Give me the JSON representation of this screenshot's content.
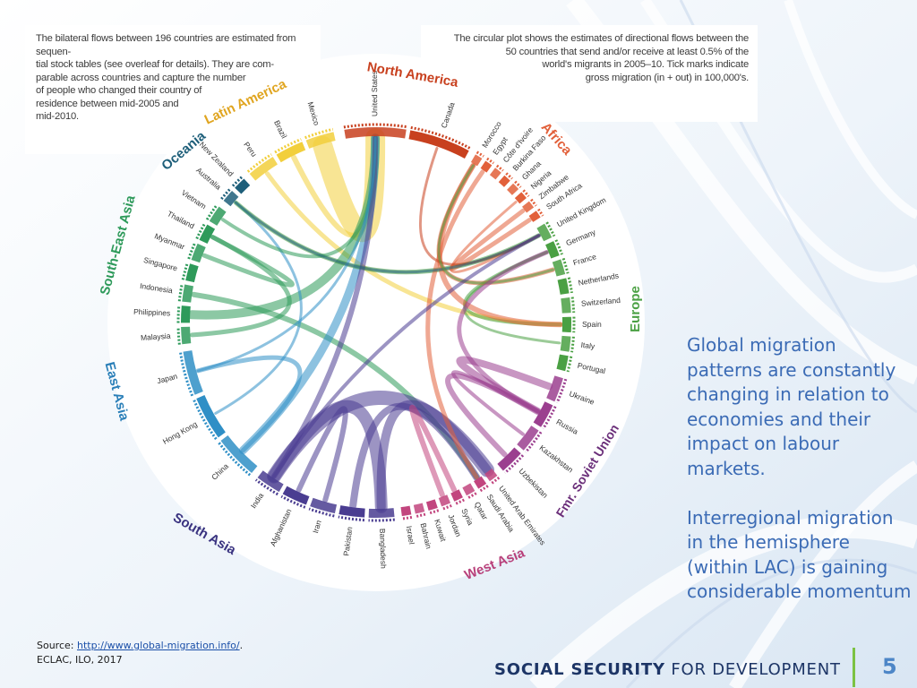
{
  "caption_left": "The bilateral flows between 196 countries are estimated from sequen-\ntial stock tables (see overleaf for details). They are com-\nparable across countries and capture the number\nof people who changed their country of\nresidence between mid-2005 and\nmid-2010.",
  "caption_right": "The circular plot shows the estimates of directional flows between the\n50 countries that send and/or receive at least 0.5% of the\nworld's migrants in 2005–10. Tick marks indicate\ngross migration (in + out) in 100,000's.",
  "regions": {
    "north_america": "North America",
    "africa": "Africa",
    "europe": "Europe",
    "fmr_soviet_union": "Fmr. Soviet Union",
    "west_asia": "West Asia",
    "south_asia": "South Asia",
    "east_asia": "East Asia",
    "south_east_asia": "South-East Asia",
    "oceania": "Oceania",
    "latin_america": "Latin America"
  },
  "countries": [
    "United States",
    "Canada",
    "Morocco",
    "Egypt",
    "Côte d'Ivoire",
    "Burkina Faso",
    "Ghana",
    "Nigeria",
    "Zimbabwe",
    "South Africa",
    "United Kingdom",
    "Germany",
    "France",
    "Netherlands",
    "Switzerland",
    "Spain",
    "Italy",
    "Portugal",
    "Ukraine",
    "Russia",
    "Kazakhstan",
    "Uzbekistan",
    "United Arab Emirates",
    "Saudi Arabia",
    "Qatar",
    "Syria",
    "Jordan",
    "Kuwait",
    "Bahrain",
    "Israel",
    "Bangladesh",
    "Pakistan",
    "Iran",
    "Afghanistan",
    "India",
    "China",
    "Hong Kong",
    "Japan",
    "Malaysia",
    "Philippines",
    "Indonesia",
    "Singapore",
    "Myanmar",
    "Thailand",
    "Vietnam",
    "Australia",
    "New Zealand",
    "Peru",
    "Brazil",
    "Mexico"
  ],
  "region_colors": {
    "north_america": "#c8401e",
    "africa": "#e2603a",
    "europe": "#4aa043",
    "fmr_soviet_union": "#9b3f8f",
    "west_asia": "#c2457e",
    "south_asia": "#4a3d91",
    "east_asia": "#2f8fc6",
    "south_east_asia": "#2e9a5a",
    "oceania": "#1e5f7a",
    "latin_america": "#f2cf3c"
  },
  "side_text": [
    "Global migration patterns are constantly changing in relation to economies and their impact on labour markets.",
    "Interregional migration in the hemisphere (within LAC) is gaining considerable momentum"
  ],
  "source_label": "Source: ",
  "source_link": "http://www.global-migration.info/",
  "source_suffix": ".",
  "source_line2": "ECLAC, ILO, 2017",
  "footer": {
    "brand_strong": "SOCIAL SECURITY",
    "brand_rest": " FOR DEVELOPMENT",
    "page_number": "5"
  }
}
